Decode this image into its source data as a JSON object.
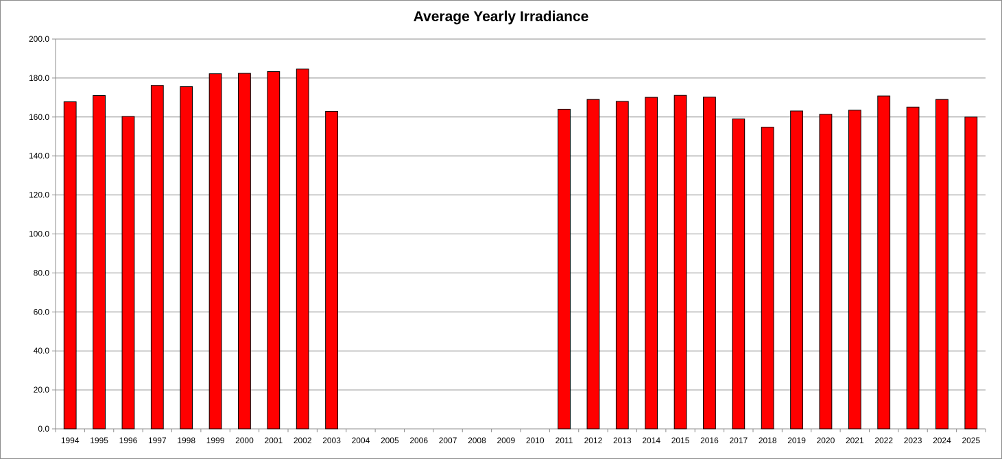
{
  "chart_data": {
    "type": "bar",
    "title": "Average Yearly Irradiance",
    "xlabel": "",
    "ylabel": "",
    "ylim": [
      0,
      200
    ],
    "ytick_step": 20,
    "ytick_labels": [
      "0.0",
      "20.0",
      "40.0",
      "60.0",
      "80.0",
      "100.0",
      "120.0",
      "140.0",
      "160.0",
      "180.0",
      "200.0"
    ],
    "grid": true,
    "legend": "none",
    "bar_color": "#ff0000",
    "bar_edge_color": "#000000",
    "categories": [
      "1994",
      "1995",
      "1996",
      "1997",
      "1998",
      "1999",
      "2000",
      "2001",
      "2002",
      "2003",
      "2004",
      "2005",
      "2006",
      "2007",
      "2008",
      "2009",
      "2010",
      "2011",
      "2012",
      "2013",
      "2014",
      "2015",
      "2016",
      "2017",
      "2018",
      "2019",
      "2020",
      "2021",
      "2022",
      "2023",
      "2024",
      "2025"
    ],
    "values": [
      167.8,
      171.0,
      160.3,
      176.2,
      175.6,
      182.2,
      182.4,
      183.3,
      184.6,
      162.9,
      null,
      null,
      null,
      null,
      null,
      null,
      null,
      164.0,
      169.0,
      168.0,
      170.1,
      171.1,
      170.2,
      159.0,
      154.8,
      163.1,
      161.4,
      163.5,
      170.8,
      165.1,
      169.0,
      160.0
    ]
  }
}
